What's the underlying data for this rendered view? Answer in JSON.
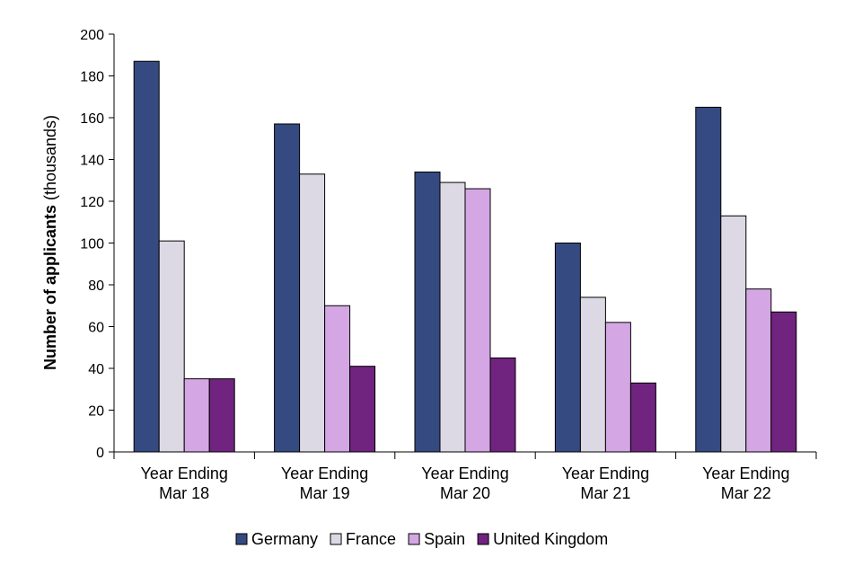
{
  "chart_data": {
    "type": "bar",
    "categories": [
      [
        "Year Ending",
        "Mar 18"
      ],
      [
        "Year Ending",
        "Mar 19"
      ],
      [
        "Year Ending",
        "Mar 20"
      ],
      [
        "Year Ending",
        "Mar 21"
      ],
      [
        "Year Ending",
        "Mar 22"
      ]
    ],
    "series": [
      {
        "name": "Germany",
        "color": "#354a80",
        "values": [
          187,
          157,
          134,
          100,
          165
        ]
      },
      {
        "name": "France",
        "color": "#dcd9e4",
        "values": [
          101,
          133,
          129,
          74,
          113
        ]
      },
      {
        "name": "Spain",
        "color": "#d4a6e4",
        "values": [
          35,
          70,
          126,
          62,
          78
        ]
      },
      {
        "name": "United Kingdom",
        "color": "#70237f",
        "values": [
          35,
          41,
          45,
          33,
          67
        ]
      }
    ],
    "ylabel_bold": "Number of applicants",
    "ylabel_rest": " (thousands)",
    "xlabel": "",
    "ylim": [
      0,
      200
    ],
    "yticks": [
      0,
      20,
      40,
      60,
      80,
      100,
      120,
      140,
      160,
      180,
      200
    ],
    "grid": false,
    "legend_position": "bottom"
  }
}
